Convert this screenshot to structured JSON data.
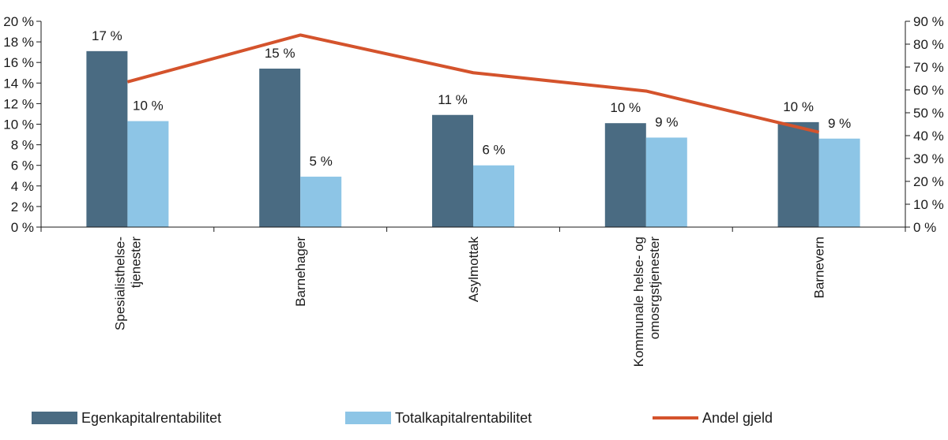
{
  "chart_data": {
    "type": "bar",
    "title": "",
    "xlabel": "",
    "ylabel": "",
    "categories": [
      [
        "Spesialisthelse-",
        "tjenester"
      ],
      [
        "Barnehager"
      ],
      [
        "Asylmottak"
      ],
      [
        "Kommunale helse- og",
        "omosrgstjenester"
      ],
      [
        "Barnevern"
      ]
    ],
    "series": [
      {
        "name": "Egenkapitalrentabilitet",
        "type": "bar",
        "axis": "left",
        "color": "#4a6b82",
        "values": [
          17.1,
          15.4,
          10.9,
          10.1,
          10.2
        ],
        "labels": [
          "17 %",
          "15 %",
          "11 %",
          "10 %",
          "10 %"
        ]
      },
      {
        "name": "Totalkapitalrentabilitet",
        "type": "bar",
        "axis": "left",
        "color": "#8dc5e6",
        "values": [
          10.3,
          4.9,
          6.0,
          8.7,
          8.6
        ],
        "labels": [
          "10 %",
          "5 %",
          "6 %",
          "9 %",
          "9 %"
        ]
      },
      {
        "name": "Andel gjeld",
        "type": "line",
        "axis": "right",
        "color": "#d4532c",
        "values": [
          63.5,
          84.0,
          67.5,
          59.5,
          41.5
        ]
      }
    ],
    "y_left": {
      "range": [
        0,
        20
      ],
      "ticks": [
        0,
        2,
        4,
        6,
        8,
        10,
        12,
        14,
        16,
        18,
        20
      ],
      "tick_labels": [
        "0 %",
        "2 %",
        "4 %",
        "6 %",
        "8 %",
        "10 %",
        "12 %",
        "14 %",
        "16 %",
        "18 %",
        "20 %"
      ]
    },
    "y_right": {
      "range": [
        0,
        90
      ],
      "ticks": [
        0,
        10,
        20,
        30,
        40,
        50,
        60,
        70,
        80,
        90
      ],
      "tick_labels": [
        "0 %",
        "10 %",
        "20 %",
        "30 %",
        "40 %",
        "50 %",
        "60 %",
        "70 %",
        "80 %",
        "90 %"
      ]
    },
    "grid": false,
    "legend_position": "bottom"
  }
}
